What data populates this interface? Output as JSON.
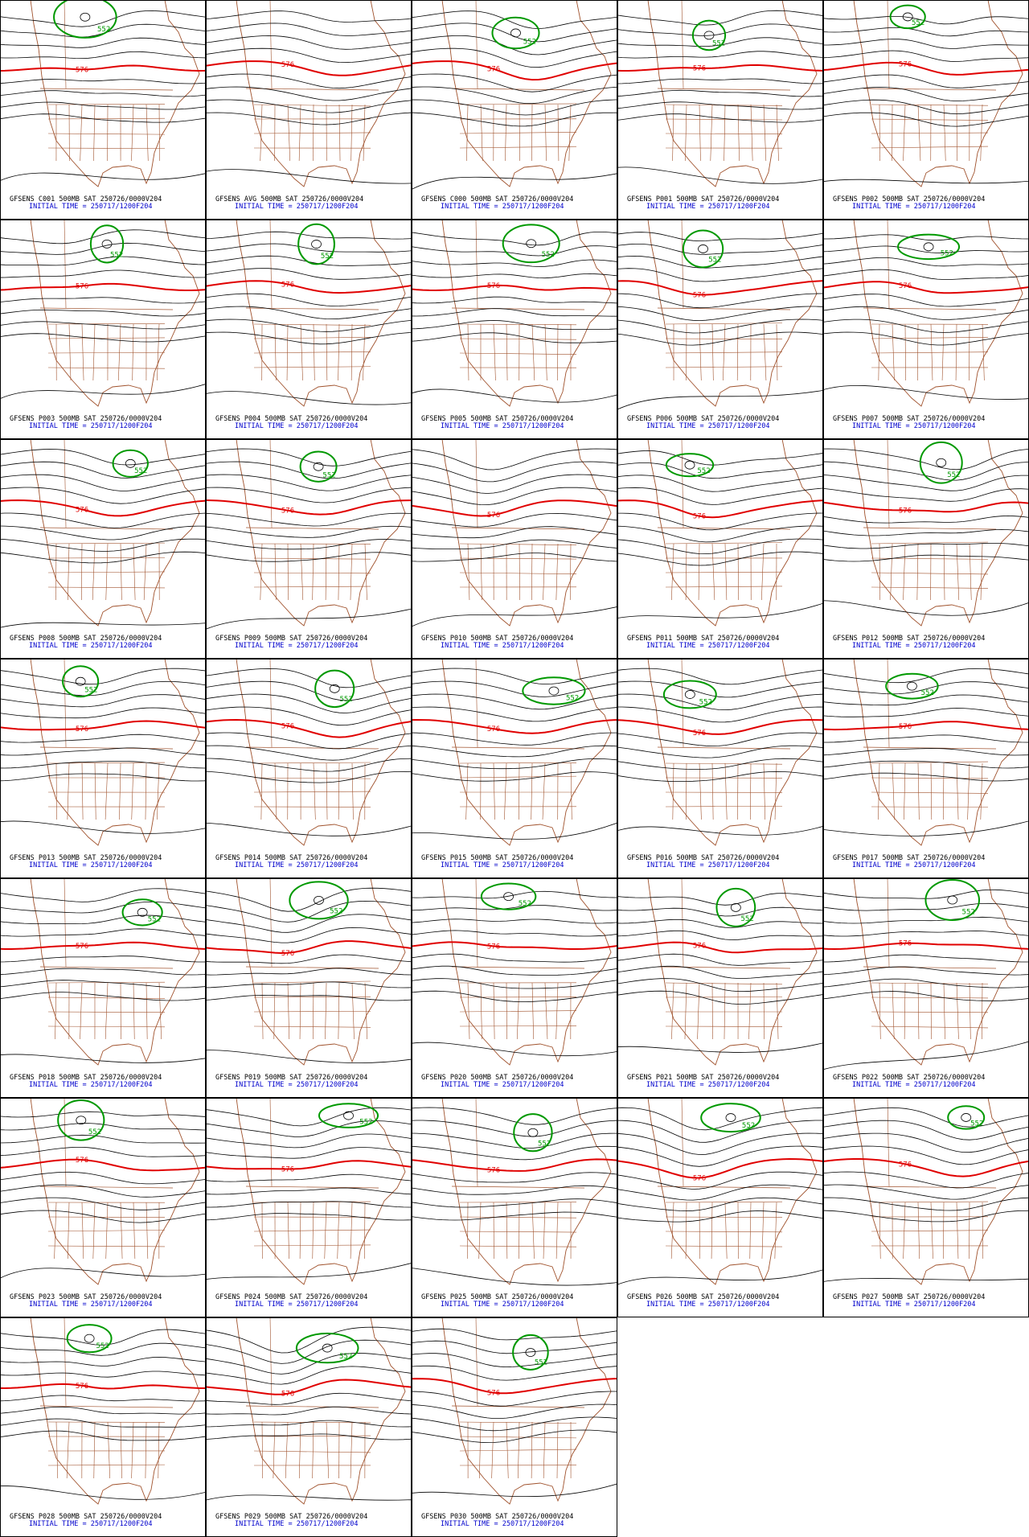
{
  "panels": [
    {
      "label": "GFSENS C001 500MB SAT 250726/0000V204",
      "init_time": "INITIAL TIME = 250717/1200F204",
      "contour_labels": [
        "576",
        "552"
      ]
    },
    {
      "label": "GFSENS AVG 500MB SAT 250726/0000V204",
      "init_time": "INITIAL TIME = 250717/1200F204",
      "contour_labels": [
        "576"
      ]
    },
    {
      "label": "GFSENS C000 500MB SAT 250726/0000V204",
      "init_time": "INITIAL TIME = 250717/1200F204",
      "contour_labels": [
        "576",
        "552"
      ]
    },
    {
      "label": "GFSENS P001 500MB SAT 250726/0000V204",
      "init_time": "INITIAL TIME = 250717/1200F204",
      "contour_labels": [
        "576",
        "552"
      ]
    },
    {
      "label": "GFSENS P002 500MB SAT 250726/0000V204",
      "init_time": "INITIAL TIME = 250717/1200F204",
      "contour_labels": [
        "576",
        "552"
      ]
    },
    {
      "label": "GFSENS P003 500MB SAT 250726/0000V204",
      "init_time": "INITIAL TIME = 250717/1200F204",
      "contour_labels": [
        "576",
        "552"
      ]
    },
    {
      "label": "GFSENS P004 500MB SAT 250726/0000V204",
      "init_time": "INITIAL TIME = 250717/1200F204",
      "contour_labels": [
        "576",
        "552"
      ]
    },
    {
      "label": "GFSENS P005 500MB SAT 250726/0000V204",
      "init_time": "INITIAL TIME = 250717/1200F204",
      "contour_labels": [
        "576",
        "552"
      ]
    },
    {
      "label": "GFSENS P006 500MB SAT 250726/0000V204",
      "init_time": "INITIAL TIME = 250717/1200F204",
      "contour_labels": [
        "576",
        "552"
      ]
    },
    {
      "label": "GFSENS P007 500MB SAT 250726/0000V204",
      "init_time": "INITIAL TIME = 250717/1200F204",
      "contour_labels": [
        "576",
        "552"
      ]
    },
    {
      "label": "GFSENS P008 500MB SAT 250726/0000V204",
      "init_time": "INITIAL TIME = 250717/1200F204",
      "contour_labels": [
        "576",
        "552"
      ]
    },
    {
      "label": "GFSENS P009 500MB SAT 250726/0000V204",
      "init_time": "INITIAL TIME = 250717/1200F204",
      "contour_labels": [
        "576",
        "552"
      ]
    },
    {
      "label": "GFSENS P010 500MB SAT 250726/0000V204",
      "init_time": "INITIAL TIME = 250717/1200F204",
      "contour_labels": [
        "576"
      ]
    },
    {
      "label": "GFSENS P011 500MB SAT 250726/0000V204",
      "init_time": "INITIAL TIME = 250717/1200F204",
      "contour_labels": [
        "576",
        "552"
      ]
    },
    {
      "label": "GFSENS P012 500MB SAT 250726/0000V204",
      "init_time": "INITIAL TIME = 250717/1200F204",
      "contour_labels": [
        "576",
        "552"
      ]
    },
    {
      "label": "GFSENS P013 500MB SAT 250726/0000V204",
      "init_time": "INITIAL TIME = 250717/1200F204",
      "contour_labels": [
        "576",
        "552"
      ]
    },
    {
      "label": "GFSENS P014 500MB SAT 250726/0000V204",
      "init_time": "INITIAL TIME = 250717/1200F204",
      "contour_labels": [
        "576",
        "552"
      ]
    },
    {
      "label": "GFSENS P015 500MB SAT 250726/0000V204",
      "init_time": "INITIAL TIME = 250717/1200F204",
      "contour_labels": [
        "576",
        "552"
      ]
    },
    {
      "label": "GFSENS P016 500MB SAT 250726/0000V204",
      "init_time": "INITIAL TIME = 250717/1200F204",
      "contour_labels": [
        "576",
        "552"
      ]
    },
    {
      "label": "GFSENS P017 500MB SAT 250726/0000V204",
      "init_time": "INITIAL TIME = 250717/1200F204",
      "contour_labels": [
        "576",
        "552"
      ]
    },
    {
      "label": "GFSENS P018 500MB SAT 250726/0000V204",
      "init_time": "INITIAL TIME = 250717/1200F204",
      "contour_labels": [
        "576",
        "552"
      ]
    },
    {
      "label": "GFSENS P019 500MB SAT 250726/0000V204",
      "init_time": "INITIAL TIME = 250717/1200F204",
      "contour_labels": [
        "576",
        "552"
      ]
    },
    {
      "label": "GFSENS P020 500MB SAT 250726/0000V204",
      "init_time": "INITIAL TIME = 250717/1200F204",
      "contour_labels": [
        "576",
        "552"
      ]
    },
    {
      "label": "GFSENS P021 500MB SAT 250726/0000V204",
      "init_time": "INITIAL TIME = 250717/1200F204",
      "contour_labels": [
        "576",
        "552"
      ]
    },
    {
      "label": "GFSENS P022 500MB SAT 250726/0000V204",
      "init_time": "INITIAL TIME = 250717/1200F204",
      "contour_labels": [
        "576",
        "552"
      ]
    },
    {
      "label": "GFSENS P023 500MB SAT 250726/0000V204",
      "init_time": "INITIAL TIME = 250717/1200F204",
      "contour_labels": [
        "576",
        "552"
      ]
    },
    {
      "label": "GFSENS P024 500MB SAT 250726/0000V204",
      "init_time": "INITIAL TIME = 250717/1200F204",
      "contour_labels": [
        "576",
        "552"
      ]
    },
    {
      "label": "GFSENS P025 500MB SAT 250726/0000V204",
      "init_time": "INITIAL TIME = 250717/1200F204",
      "contour_labels": [
        "576",
        "552"
      ]
    },
    {
      "label": "GFSENS P026 500MB SAT 250726/0000V204",
      "init_time": "INITIAL TIME = 250717/1200F204",
      "contour_labels": [
        "576",
        "552"
      ]
    },
    {
      "label": "GFSENS P027 500MB SAT 250726/0000V204",
      "init_time": "INITIAL TIME = 250717/1200F204",
      "contour_labels": [
        "576",
        "552"
      ]
    },
    {
      "label": "GFSENS P028 500MB SAT 250726/0000V204",
      "init_time": "INITIAL TIME = 250717/1200F204",
      "contour_labels": [
        "576",
        "552"
      ]
    },
    {
      "label": "GFSENS P029 500MB SAT 250726/0000V204",
      "init_time": "INITIAL TIME = 250717/1200F204",
      "contour_labels": [
        "576",
        "552"
      ]
    },
    {
      "label": "GFSENS P030 500MB SAT 250726/0000V204",
      "init_time": "INITIAL TIME = 250717/1200F204",
      "contour_labels": [
        "576",
        "552"
      ]
    }
  ]
}
